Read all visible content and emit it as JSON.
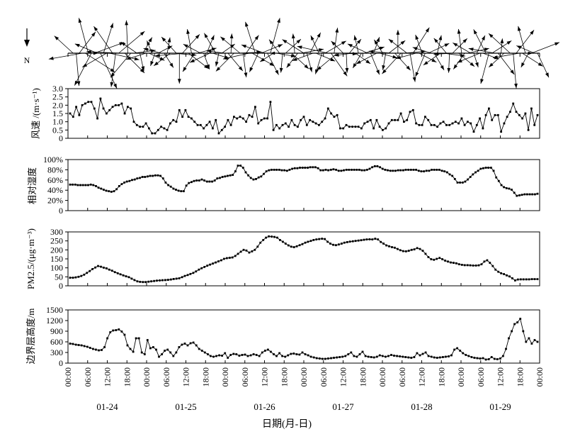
{
  "chart_data": {
    "type": "line",
    "xlabel": "日期(月-日)",
    "time_ticks": [
      "00:00",
      "06:00",
      "12:00",
      "18:00",
      "00:00",
      "06:00",
      "12:00",
      "18:00",
      "00:00",
      "06:00",
      "12:00",
      "18:00",
      "00:00",
      "06:00",
      "12:00",
      "18:00",
      "00:00",
      "06:00",
      "12:00",
      "18:00",
      "00:00",
      "06:00",
      "12:00",
      "18:00",
      "00:00"
    ],
    "date_labels": [
      "01-24",
      "01-25",
      "01-26",
      "01-27",
      "01-28",
      "01-29"
    ],
    "wind_panel": {
      "north_label": "N"
    },
    "panels": [
      {
        "key": "ws",
        "ylabel": "风速 /(m·s⁻¹)",
        "ylim": [
          0,
          3
        ],
        "yticks": [
          "0",
          "0.5",
          "1.0",
          "1.5",
          "2.0",
          "2.5",
          "3.0"
        ],
        "values": [
          1.5,
          1.3,
          1.9,
          1.4,
          2.0,
          2.1,
          2.2,
          2.2,
          1.8,
          1.2,
          2.4,
          1.8,
          1.5,
          1.7,
          1.9,
          2.0,
          2.0,
          2.1,
          1.5,
          1.9,
          1.8,
          1.0,
          0.8,
          0.7,
          0.7,
          0.9,
          0.6,
          0.3,
          0.3,
          0.5,
          0.7,
          0.6,
          0.5,
          0.9,
          1.1,
          1.0,
          1.7,
          1.3,
          1.7,
          1.3,
          1.2,
          1.0,
          0.8,
          0.8,
          0.6,
          0.8,
          1.0,
          0.6,
          1.1,
          0.3,
          0.5,
          0.7,
          1.1,
          0.8,
          1.3,
          1.2,
          1.3,
          1.2,
          1.0,
          1.4,
          1.3,
          1.9,
          0.9,
          1.1,
          1.2,
          1.2,
          2.2,
          0.5,
          0.8,
          0.6,
          0.8,
          0.9,
          0.7,
          1.1,
          0.8,
          0.7,
          1.1,
          1.3,
          0.8,
          1.1,
          1.0,
          0.9,
          0.8,
          1.0,
          1.2,
          1.8,
          1.5,
          1.3,
          1.4,
          0.6,
          0.6,
          0.8,
          0.7,
          0.7,
          0.7,
          0.7,
          0.6,
          0.9,
          1.0,
          1.1,
          0.6,
          1.1,
          0.7,
          0.5,
          0.6,
          0.9,
          1.1,
          1.1,
          1.1,
          1.5,
          1.0,
          1.1,
          1.6,
          1.7,
          0.9,
          0.8,
          0.8,
          1.3,
          1.1,
          0.8,
          0.8,
          0.7,
          0.9,
          1.0,
          0.8,
          0.8,
          0.9,
          1.0,
          0.9,
          1.2,
          0.8,
          1.0,
          0.9,
          0.4,
          0.8,
          1.2,
          0.6,
          1.4,
          1.8,
          1.1,
          1.4,
          1.4,
          0.4,
          0.9,
          1.3,
          1.6,
          2.1,
          1.6,
          1.4,
          1.2,
          1.5,
          0.5,
          1.8,
          0.8,
          1.4
        ]
      },
      {
        "key": "rh",
        "ylabel": "相对湿度",
        "ylim": [
          0,
          100
        ],
        "yticks": [
          "0",
          "20%",
          "40%",
          "60%",
          "80%",
          "100%"
        ],
        "values": [
          51,
          51,
          51,
          50,
          50,
          50,
          50,
          50,
          51,
          50,
          48,
          45,
          43,
          41,
          39,
          38,
          37,
          38,
          42,
          48,
          52,
          55,
          57,
          58,
          60,
          61,
          63,
          64,
          66,
          66,
          67,
          68,
          68,
          69,
          69,
          68,
          63,
          55,
          50,
          47,
          43,
          41,
          39,
          38,
          38,
          49,
          54,
          56,
          58,
          59,
          59,
          61,
          59,
          57,
          57,
          57,
          59,
          63,
          64,
          66,
          67,
          68,
          69,
          70,
          77,
          88,
          88,
          84,
          75,
          69,
          64,
          61,
          62,
          65,
          67,
          72,
          77,
          79,
          80,
          80,
          80,
          80,
          79,
          79,
          78,
          80,
          82,
          83,
          83,
          84,
          84,
          84,
          84,
          85,
          85,
          85,
          83,
          79,
          79,
          80,
          79,
          80,
          81,
          80,
          78,
          78,
          79,
          80,
          80,
          80,
          80,
          80,
          80,
          79,
          79,
          80,
          82,
          85,
          87,
          87,
          85,
          82,
          80,
          79,
          78,
          78,
          78,
          79,
          79,
          79,
          80,
          80,
          80,
          80,
          80,
          78,
          77,
          77,
          78,
          78,
          80,
          80,
          80,
          80,
          78,
          77,
          75,
          71,
          68,
          62,
          55,
          55,
          55,
          57,
          61,
          66,
          71,
          75,
          78,
          82,
          83,
          84,
          84,
          84,
          78,
          65,
          58,
          50,
          46,
          44,
          43,
          41,
          35,
          29,
          30,
          31,
          32,
          32,
          32,
          32,
          32,
          33
        ]
      },
      {
        "key": "pm",
        "ylabel": "PM2.5/(μg·m⁻³)",
        "ylim": [
          0,
          300
        ],
        "yticks": [
          "0",
          "50",
          "100",
          "150",
          "200",
          "250",
          "300"
        ],
        "values": [
          45,
          45,
          47,
          50,
          55,
          62,
          72,
          82,
          93,
          102,
          110,
          106,
          101,
          97,
          90,
          84,
          76,
          70,
          64,
          58,
          53,
          48,
          40,
          32,
          25,
          22,
          21,
          21,
          23,
          25,
          27,
          29,
          30,
          31,
          32,
          33,
          35,
          38,
          40,
          42,
          48,
          55,
          60,
          66,
          72,
          80,
          90,
          98,
          105,
          112,
          118,
          124,
          130,
          136,
          142,
          150,
          154,
          156,
          158,
          166,
          178,
          190,
          200,
          196,
          185,
          192,
          200,
          218,
          240,
          255,
          268,
          275,
          274,
          272,
          268,
          255,
          245,
          235,
          225,
          218,
          215,
          220,
          226,
          232,
          240,
          245,
          250,
          255,
          258,
          260,
          262,
          260,
          245,
          235,
          228,
          226,
          230,
          235,
          240,
          243,
          246,
          248,
          250,
          252,
          254,
          256,
          258,
          259,
          258,
          262,
          258,
          244,
          235,
          225,
          220,
          215,
          212,
          205,
          198,
          193,
          192,
          195,
          200,
          203,
          210,
          205,
          195,
          178,
          160,
          148,
          145,
          150,
          155,
          148,
          140,
          135,
          130,
          128,
          125,
          120,
          117,
          115,
          115,
          114,
          113,
          113,
          114,
          120,
          135,
          142,
          128,
          110,
          90,
          78,
          70,
          65,
          58,
          52,
          42,
          30,
          35,
          36,
          36,
          36,
          36,
          37,
          37,
          37
        ]
      },
      {
        "key": "blh",
        "ylabel": "边界层高度/m",
        "ylim": [
          0,
          1500
        ],
        "yticks": [
          "0",
          "300",
          "600",
          "900",
          "1200",
          "1500"
        ],
        "values": [
          550,
          540,
          520,
          510,
          500,
          480,
          460,
          430,
          400,
          380,
          360,
          370,
          450,
          700,
          870,
          920,
          930,
          950,
          890,
          800,
          500,
          400,
          320,
          700,
          700,
          300,
          250,
          650,
          420,
          450,
          380,
          180,
          250,
          350,
          380,
          300,
          200,
          300,
          450,
          520,
          550,
          500,
          560,
          580,
          500,
          400,
          350,
          300,
          250,
          200,
          180,
          200,
          220,
          210,
          280,
          150,
          230,
          260,
          250,
          210,
          230,
          240,
          200,
          220,
          250,
          230,
          200,
          300,
          350,
          380,
          320,
          250,
          200,
          280,
          200,
          180,
          220,
          260,
          270,
          250,
          240,
          300,
          250,
          220,
          180,
          160,
          140,
          130,
          120,
          120,
          130,
          140,
          150,
          160,
          170,
          180,
          200,
          250,
          300,
          200,
          180,
          250,
          320,
          200,
          180,
          170,
          160,
          180,
          220,
          200,
          180,
          200,
          230,
          210,
          200,
          190,
          180,
          170,
          160,
          150,
          170,
          280,
          220,
          260,
          300,
          200,
          180,
          160,
          150,
          160,
          170,
          180,
          190,
          220,
          380,
          420,
          350,
          280,
          230,
          200,
          170,
          150,
          140,
          130,
          140,
          100,
          110,
          170,
          120,
          110,
          130,
          200,
          400,
          700,
          900,
          1100,
          1150,
          1250,
          900,
          600,
          700,
          550,
          650,
          600
        ]
      }
    ]
  }
}
